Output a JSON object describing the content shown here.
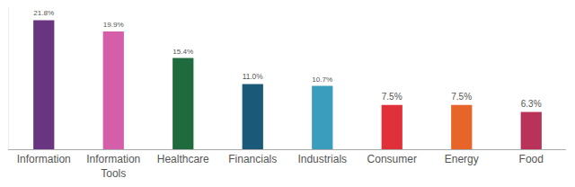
{
  "chart_data": {
    "type": "bar",
    "categories": [
      "Information",
      "Information Tools",
      "Healthcare",
      "Financials",
      "Industrials",
      "Consumer",
      "Energy",
      "Food"
    ],
    "values": [
      21.8,
      19.9,
      15.4,
      11.0,
      10.7,
      7.5,
      7.5,
      6.3
    ],
    "value_labels": [
      "21.8%",
      "19.9%",
      "15.4%",
      "11.0%",
      "10.7%",
      "7.5%",
      "7.5%",
      "6.3%"
    ],
    "colors": [
      "#6a3580",
      "#d45fa8",
      "#1f6b3e",
      "#1a5a78",
      "#3a9dbd",
      "#e0303a",
      "#e8652a",
      "#b8325a"
    ],
    "ylim": [
      0,
      24
    ],
    "yticks": [],
    "grid": false,
    "data_labels": true,
    "tick_labels": "x"
  }
}
